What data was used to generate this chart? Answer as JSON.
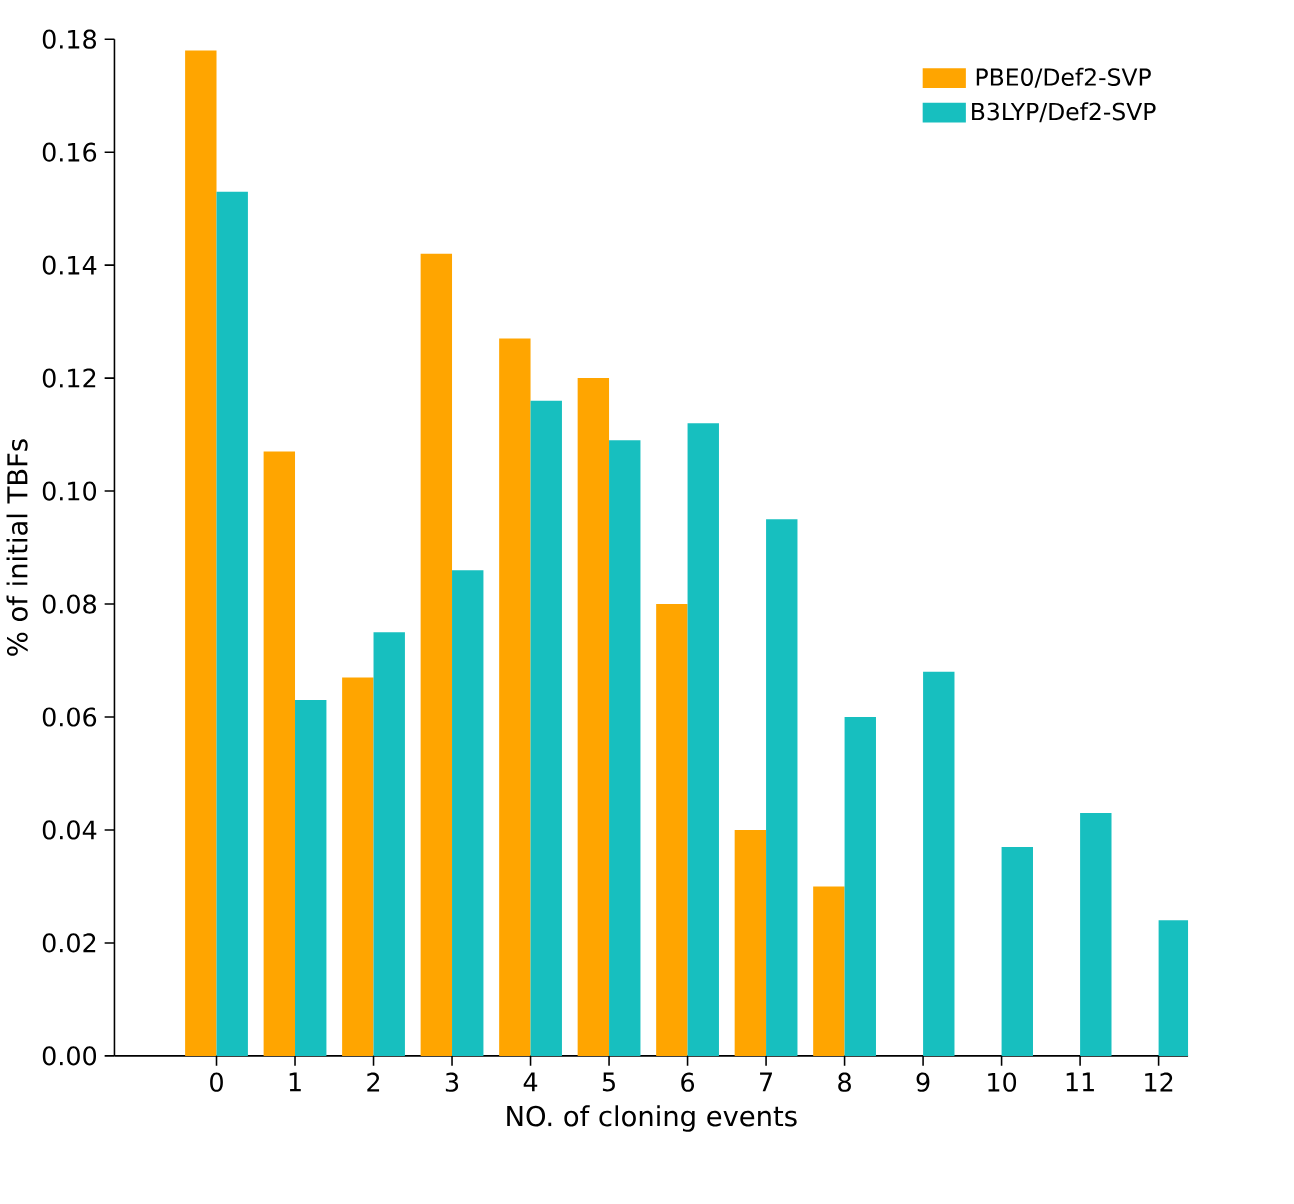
{
  "chart_data": {
    "type": "bar",
    "xlabel": "NO. of cloning events",
    "ylabel": "% of initial TBFs",
    "categories": [
      "0",
      "1",
      "2",
      "3",
      "4",
      "5",
      "6",
      "7",
      "8",
      "9",
      "10",
      "11",
      "12"
    ],
    "series": [
      {
        "name": "PBE0/Def2-SVP",
        "color": "#ffa500",
        "values": [
          0.178,
          0.107,
          0.067,
          0.142,
          0.127,
          0.12,
          0.08,
          0.04,
          0.03,
          null,
          null,
          null,
          null
        ]
      },
      {
        "name": "B3LYP/Def2-SVP",
        "color": "#17bfbf",
        "values": [
          0.153,
          0.063,
          0.075,
          0.086,
          0.116,
          0.109,
          0.112,
          0.095,
          0.06,
          0.068,
          0.037,
          0.043,
          0.024
        ]
      }
    ],
    "ylim": [
      0,
      0.18
    ],
    "yticks": [
      {
        "value": 0,
        "label": "0.00"
      },
      {
        "value": 0.02,
        "label": "0.02"
      },
      {
        "value": 0.04,
        "label": "0.04"
      },
      {
        "value": 0.06,
        "label": "0.06"
      },
      {
        "value": 0.08,
        "label": "0.08"
      },
      {
        "value": 0.1,
        "label": "0.10"
      },
      {
        "value": 0.12,
        "label": "0.12"
      },
      {
        "value": 0.14,
        "label": "0.14"
      },
      {
        "value": 0.16,
        "label": "0.16"
      },
      {
        "value": 0.18,
        "label": "0.18"
      }
    ],
    "grid": false,
    "legend": "top right"
  }
}
